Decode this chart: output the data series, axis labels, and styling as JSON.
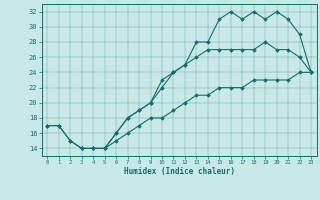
{
  "xlabel": "Humidex (Indice chaleur)",
  "ylabel": "",
  "bg_color": "#c8e8e8",
  "line_color": "#1a6b6b",
  "xlim": [
    -0.5,
    23.5
  ],
  "ylim": [
    13,
    33
  ],
  "xticks": [
    0,
    1,
    2,
    3,
    4,
    5,
    6,
    7,
    8,
    9,
    10,
    11,
    12,
    13,
    14,
    15,
    16,
    17,
    18,
    19,
    20,
    21,
    22,
    23
  ],
  "yticks": [
    14,
    16,
    18,
    20,
    22,
    24,
    26,
    28,
    30,
    32
  ],
  "line1_x": [
    0,
    1,
    2,
    3,
    4,
    5,
    6,
    7,
    8,
    9,
    10,
    11,
    12,
    13,
    14,
    15,
    16,
    17,
    18,
    19,
    20,
    21,
    22,
    23
  ],
  "line1_y": [
    17,
    17,
    15,
    14,
    14,
    14,
    16,
    18,
    19,
    20,
    23,
    24,
    25,
    28,
    28,
    31,
    32,
    31,
    32,
    31,
    32,
    31,
    29,
    24
  ],
  "line2_x": [
    0,
    1,
    2,
    3,
    4,
    5,
    6,
    7,
    8,
    9,
    10,
    11,
    12,
    13,
    14,
    15,
    16,
    17,
    18,
    19,
    20,
    21,
    22,
    23
  ],
  "line2_y": [
    17,
    17,
    15,
    14,
    14,
    14,
    16,
    18,
    19,
    20,
    22,
    24,
    25,
    26,
    27,
    27,
    27,
    27,
    27,
    28,
    27,
    27,
    26,
    24
  ],
  "line3_x": [
    3,
    4,
    5,
    6,
    7,
    8,
    9,
    10,
    11,
    12,
    13,
    14,
    15,
    16,
    17,
    18,
    19,
    20,
    21,
    22,
    23
  ],
  "line3_y": [
    14,
    14,
    14,
    15,
    16,
    17,
    18,
    18,
    19,
    20,
    21,
    21,
    22,
    22,
    22,
    23,
    23,
    23,
    23,
    24,
    24
  ]
}
